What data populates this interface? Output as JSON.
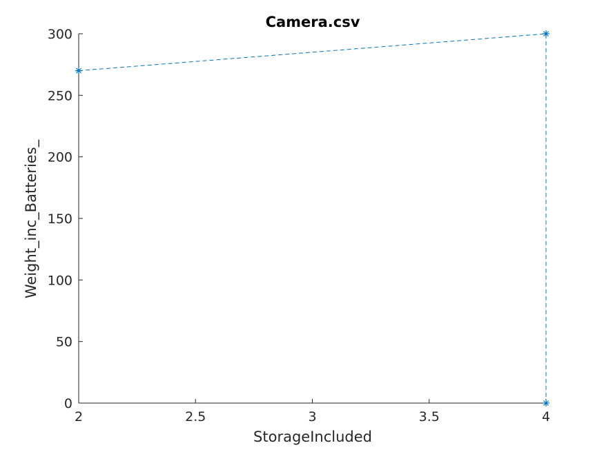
{
  "chart_data": {
    "type": "line",
    "title": "Camera.csv",
    "xlabel": "StorageIncluded",
    "ylabel": "Weight_inc_Batteries_",
    "xlim": [
      2,
      4
    ],
    "ylim": [
      0,
      300
    ],
    "xticks": [
      "2",
      "2.5",
      "3",
      "3.5",
      "4"
    ],
    "yticks": [
      "0",
      "50",
      "100",
      "150",
      "200",
      "250",
      "300"
    ],
    "grid": false,
    "line_style": "dashed",
    "marker": "asterisk",
    "color": "#0072BD",
    "series": [
      {
        "x": [
          2,
          4,
          4
        ],
        "y": [
          270,
          300,
          0
        ]
      }
    ]
  }
}
